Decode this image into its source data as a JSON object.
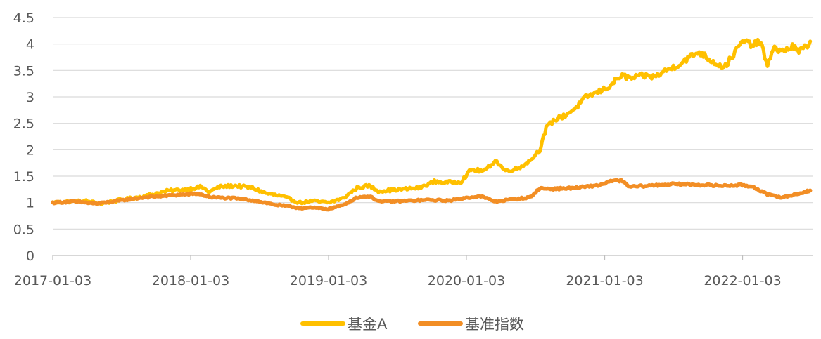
{
  "chart_data": {
    "type": "line",
    "xlabel": "",
    "ylabel": "",
    "x_ticks": [
      "2017-01-03",
      "2018-01-03",
      "2019-01-03",
      "2020-01-03",
      "2021-01-03",
      "2022-01-03"
    ],
    "y_ticks": [
      "0",
      "0.5",
      "1",
      "1.5",
      "2",
      "2.5",
      "3",
      "3.5",
      "4",
      "4.5"
    ],
    "ylim": [
      0,
      4.5
    ],
    "xlim": [
      "2017-01-03",
      "2022-07-01"
    ],
    "grid": "horizontal",
    "legend_position": "bottom",
    "series": [
      {
        "name": "基金A",
        "color": "#FFC000",
        "points": [
          [
            "2017-01-03",
            1.0
          ],
          [
            "2017-02-15",
            1.02
          ],
          [
            "2017-04-01",
            1.03
          ],
          [
            "2017-05-10",
            0.98
          ],
          [
            "2017-07-01",
            1.05
          ],
          [
            "2017-09-01",
            1.12
          ],
          [
            "2017-11-01",
            1.22
          ],
          [
            "2017-12-20",
            1.25
          ],
          [
            "2018-02-01",
            1.3
          ],
          [
            "2018-02-20",
            1.2
          ],
          [
            "2018-03-20",
            1.3
          ],
          [
            "2018-05-01",
            1.32
          ],
          [
            "2018-06-15",
            1.28
          ],
          [
            "2018-07-20",
            1.18
          ],
          [
            "2018-09-01",
            1.12
          ],
          [
            "2018-10-20",
            1.0
          ],
          [
            "2018-11-20",
            1.03
          ],
          [
            "2019-01-03",
            1.0
          ],
          [
            "2019-02-10",
            1.08
          ],
          [
            "2019-03-20",
            1.28
          ],
          [
            "2019-04-20",
            1.32
          ],
          [
            "2019-05-15",
            1.22
          ],
          [
            "2019-07-15",
            1.25
          ],
          [
            "2019-09-01",
            1.28
          ],
          [
            "2019-10-10",
            1.4
          ],
          [
            "2019-11-10",
            1.38
          ],
          [
            "2019-12-20",
            1.4
          ],
          [
            "2020-01-15",
            1.62
          ],
          [
            "2020-02-20",
            1.6
          ],
          [
            "2020-03-20",
            1.8
          ],
          [
            "2020-04-15",
            1.6
          ],
          [
            "2020-05-20",
            1.65
          ],
          [
            "2020-06-20",
            1.8
          ],
          [
            "2020-07-15",
            2.0
          ],
          [
            "2020-08-01",
            2.4
          ],
          [
            "2020-08-20",
            2.55
          ],
          [
            "2020-09-20",
            2.65
          ],
          [
            "2020-10-20",
            2.8
          ],
          [
            "2020-11-15",
            3.0
          ],
          [
            "2020-12-20",
            3.1
          ],
          [
            "2021-01-15",
            3.2
          ],
          [
            "2021-02-15",
            3.4
          ],
          [
            "2021-03-15",
            3.35
          ],
          [
            "2021-04-15",
            3.4
          ],
          [
            "2021-05-15",
            3.38
          ],
          [
            "2021-06-15",
            3.5
          ],
          [
            "2021-07-15",
            3.6
          ],
          [
            "2021-08-15",
            3.75
          ],
          [
            "2021-09-10",
            3.85
          ],
          [
            "2021-10-10",
            3.7
          ],
          [
            "2021-11-15",
            3.55
          ],
          [
            "2021-12-10",
            3.8
          ],
          [
            "2022-01-03",
            4.05
          ],
          [
            "2022-02-01",
            3.98
          ],
          [
            "2022-02-20",
            4.05
          ],
          [
            "2022-03-10",
            3.55
          ],
          [
            "2022-03-25",
            3.95
          ],
          [
            "2022-04-15",
            3.85
          ],
          [
            "2022-05-15",
            3.95
          ],
          [
            "2022-06-01",
            3.85
          ],
          [
            "2022-06-20",
            3.95
          ],
          [
            "2022-07-01",
            4.05
          ]
        ]
      },
      {
        "name": "基准指数",
        "color": "#F28E25",
        "points": [
          [
            "2017-01-03",
            1.0
          ],
          [
            "2017-03-01",
            1.02
          ],
          [
            "2017-05-01",
            0.98
          ],
          [
            "2017-07-01",
            1.04
          ],
          [
            "2017-09-01",
            1.1
          ],
          [
            "2017-11-15",
            1.14
          ],
          [
            "2018-01-20",
            1.17
          ],
          [
            "2018-03-01",
            1.1
          ],
          [
            "2018-05-01",
            1.08
          ],
          [
            "2018-06-20",
            1.04
          ],
          [
            "2018-08-15",
            0.96
          ],
          [
            "2018-10-20",
            0.9
          ],
          [
            "2018-12-01",
            0.9
          ],
          [
            "2019-01-03",
            0.88
          ],
          [
            "2019-02-10",
            0.95
          ],
          [
            "2019-03-20",
            1.1
          ],
          [
            "2019-04-20",
            1.12
          ],
          [
            "2019-05-20",
            1.02
          ],
          [
            "2019-07-15",
            1.03
          ],
          [
            "2019-09-20",
            1.05
          ],
          [
            "2019-11-20",
            1.04
          ],
          [
            "2020-01-10",
            1.1
          ],
          [
            "2020-02-10",
            1.12
          ],
          [
            "2020-03-20",
            1.02
          ],
          [
            "2020-05-01",
            1.06
          ],
          [
            "2020-06-20",
            1.1
          ],
          [
            "2020-07-15",
            1.27
          ],
          [
            "2020-08-20",
            1.26
          ],
          [
            "2020-10-20",
            1.28
          ],
          [
            "2020-12-20",
            1.33
          ],
          [
            "2021-01-15",
            1.4
          ],
          [
            "2021-02-15",
            1.42
          ],
          [
            "2021-03-10",
            1.3
          ],
          [
            "2021-05-01",
            1.32
          ],
          [
            "2021-07-01",
            1.35
          ],
          [
            "2021-09-01",
            1.34
          ],
          [
            "2021-11-01",
            1.32
          ],
          [
            "2022-01-03",
            1.33
          ],
          [
            "2022-02-01",
            1.3
          ],
          [
            "2022-03-10",
            1.15
          ],
          [
            "2022-04-20",
            1.1
          ],
          [
            "2022-05-20",
            1.15
          ],
          [
            "2022-07-01",
            1.23
          ]
        ]
      }
    ]
  }
}
